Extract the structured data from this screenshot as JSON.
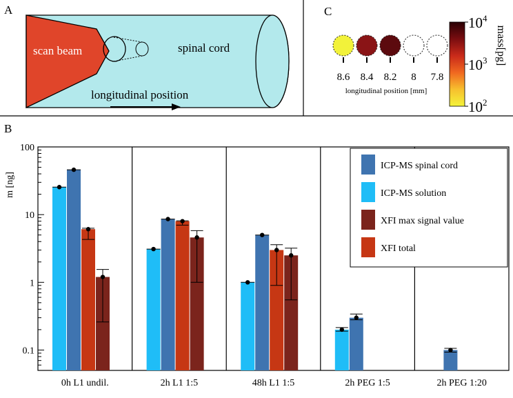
{
  "panels": {
    "a_label": "A",
    "b_label": "B",
    "c_label": "C"
  },
  "diagram": {
    "beam_label": "scan beam",
    "cord_label": "spinal cord",
    "position_label": "longitudinal position",
    "colors": {
      "beam": "#e0452a",
      "cord": "#b3e9ec"
    }
  },
  "panel_c": {
    "positions": [
      "8.6",
      "8.4",
      "8.2",
      "8",
      "7.8"
    ],
    "circle_colors": [
      "#f2f23a",
      "#8a1416",
      "#5c0a0e",
      "#ffffff",
      "#ffffff"
    ],
    "xlabel": "longitudinal position [mm]",
    "colorbar": {
      "label": "mass[pg]",
      "ticks": [
        {
          "base": "10",
          "exp": "4"
        },
        {
          "base": "10",
          "exp": "3"
        },
        {
          "base": "10",
          "exp": "2"
        }
      ],
      "colors": [
        "#2a0004",
        "#7a0d10",
        "#c92a1a",
        "#f06820",
        "#f7c02e",
        "#f4f33a"
      ]
    }
  },
  "chart_data": {
    "type": "bar",
    "yscale": "log",
    "ylabel": "m [ng]",
    "ylim": [
      0.05,
      100
    ],
    "yticks": [
      "100",
      "10",
      "1",
      "0.1"
    ],
    "ytick_values": [
      100,
      10,
      1,
      0.1
    ],
    "categories": [
      "0h L1 undil.",
      "2h L1 1:5",
      "48h L1 1:5",
      "2h PEG 1:5",
      "2h PEG 1:20"
    ],
    "series": [
      {
        "name": "ICP-MS solution",
        "color": "#1fbdf7",
        "values": [
          25.5,
          3.1,
          1.0,
          0.2,
          null
        ],
        "err_low": [
          null,
          null,
          null,
          0.19,
          null
        ],
        "err_high": [
          null,
          null,
          null,
          0.215,
          null
        ]
      },
      {
        "name": "ICP-MS spinal cord",
        "color": "#3f74b0",
        "values": [
          46,
          8.6,
          5.0,
          0.3,
          0.1
        ],
        "err_low": [
          null,
          null,
          null,
          0.28,
          0.093
        ],
        "err_high": [
          null,
          null,
          null,
          0.34,
          0.106
        ]
      },
      {
        "name": "XFI total",
        "color": "#c63714",
        "values": [
          6.1,
          8.0,
          3.0,
          null,
          null
        ],
        "err_low": [
          4.3,
          7.0,
          0.9,
          null,
          null
        ],
        "err_high": [
          6.3,
          8.1,
          3.6,
          null,
          null
        ]
      },
      {
        "name": "XFI max signal value",
        "color": "#7b241c",
        "values": [
          1.2,
          4.6,
          2.5,
          null,
          null
        ],
        "err_low": [
          0.26,
          1.0,
          0.55,
          null,
          null
        ],
        "err_high": [
          1.55,
          5.8,
          3.2,
          null,
          null
        ]
      }
    ],
    "legend_order": [
      "ICP-MS spinal cord",
      "ICP-MS solution",
      "XFI max signal value",
      "XFI total"
    ],
    "legend_position": "top-right"
  }
}
